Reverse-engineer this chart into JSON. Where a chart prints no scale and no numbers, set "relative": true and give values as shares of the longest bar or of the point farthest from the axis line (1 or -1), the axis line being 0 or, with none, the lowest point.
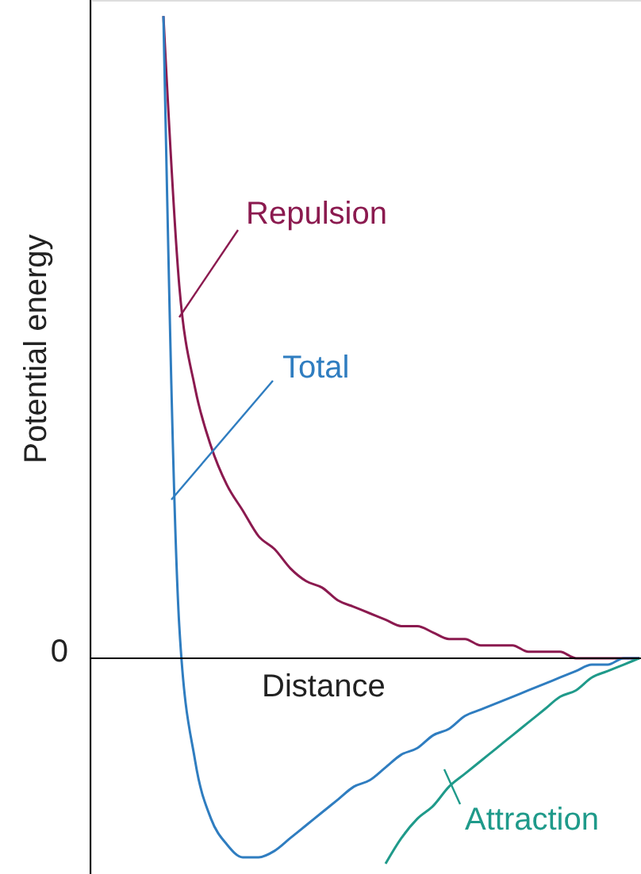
{
  "chart_data": {
    "type": "line",
    "relative": true,
    "xlabel": "Distance",
    "ylabel": "Potential energy",
    "marker": "none",
    "line_style": "solid",
    "annotations": [
      "0"
    ],
    "categories": [
      null,
      null,
      null,
      null,
      null,
      null,
      null,
      null,
      null,
      null,
      null,
      null,
      null,
      null,
      null,
      null,
      null,
      null,
      null,
      null,
      null,
      null,
      null,
      null,
      null,
      null,
      null,
      null,
      null,
      null,
      null
    ],
    "series": [
      {
        "name": "Repulsion",
        "color": "#8b1a4f",
        "values": [
          1.0,
          0.58,
          0.42,
          0.33,
          0.27,
          0.23,
          0.19,
          0.17,
          0.14,
          0.12,
          0.11,
          0.09,
          0.08,
          0.07,
          0.06,
          0.05,
          0.05,
          0.04,
          0.03,
          0.03,
          0.02,
          0.02,
          0.02,
          0.01,
          0.01,
          0.01,
          0,
          0,
          0,
          0,
          0
        ]
      },
      {
        "name": "Total",
        "color": "#2f7dc0",
        "values": [
          1.0,
          0.05,
          -0.16,
          -0.25,
          -0.29,
          -0.31,
          -0.31,
          -0.3,
          -0.28,
          -0.26,
          -0.24,
          -0.22,
          -0.2,
          -0.19,
          -0.17,
          -0.15,
          -0.14,
          -0.12,
          -0.11,
          -0.09,
          -0.08,
          -0.07,
          -0.06,
          -0.05,
          -0.04,
          -0.03,
          -0.02,
          -0.01,
          -0.01,
          0,
          0
        ]
      },
      {
        "name": "Attraction",
        "color": "#1f9a8a",
        "values": [
          null,
          null,
          null,
          null,
          null,
          null,
          null,
          null,
          null,
          null,
          null,
          null,
          null,
          null,
          -0.32,
          -0.28,
          -0.25,
          -0.23,
          -0.2,
          -0.18,
          -0.16,
          -0.14,
          -0.12,
          -0.1,
          -0.08,
          -0.06,
          -0.05,
          -0.03,
          -0.02,
          -0.01,
          0
        ]
      }
    ]
  }
}
